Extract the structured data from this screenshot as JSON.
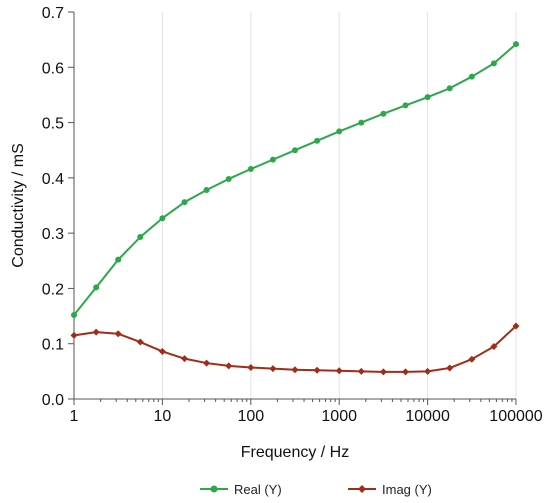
{
  "chart_data": {
    "type": "line",
    "title": "",
    "xlabel": "Frequency / Hz",
    "ylabel": "Conductivity / mS",
    "xscale": "log",
    "xlim": [
      1,
      100000
    ],
    "ylim": [
      0,
      0.7
    ],
    "x_ticks": [
      "1",
      "10",
      "100",
      "1000",
      "10000",
      "100000"
    ],
    "y_ticks": [
      "0.0",
      "0.1",
      "0.2",
      "0.3",
      "0.4",
      "0.5",
      "0.6",
      "0.7"
    ],
    "grid": "vertical",
    "legend_position": "bottom",
    "series": [
      {
        "name": "Real (Y)",
        "color": "#2ca84a",
        "marker": "circle",
        "x": [
          1,
          1.78,
          3.16,
          5.62,
          10,
          17.8,
          31.6,
          56.2,
          100,
          178,
          316,
          562,
          1000,
          1778,
          3162,
          5623,
          10000,
          17783,
          31623,
          56234,
          100000
        ],
        "y": [
          0.152,
          0.202,
          0.252,
          0.293,
          0.327,
          0.356,
          0.378,
          0.398,
          0.416,
          0.433,
          0.45,
          0.467,
          0.484,
          0.5,
          0.516,
          0.531,
          0.546,
          0.562,
          0.583,
          0.607,
          0.642
        ]
      },
      {
        "name": "Imag (Y)",
        "color": "#a02d17",
        "marker": "diamond",
        "x": [
          1,
          1.78,
          3.16,
          5.62,
          10,
          17.8,
          31.6,
          56.2,
          100,
          178,
          316,
          562,
          1000,
          1778,
          3162,
          5623,
          10000,
          17783,
          31623,
          56234,
          100000
        ],
        "y": [
          0.115,
          0.121,
          0.118,
          0.103,
          0.086,
          0.073,
          0.065,
          0.06,
          0.057,
          0.055,
          0.053,
          0.052,
          0.051,
          0.05,
          0.049,
          0.049,
          0.05,
          0.056,
          0.072,
          0.095,
          0.132
        ]
      }
    ]
  }
}
